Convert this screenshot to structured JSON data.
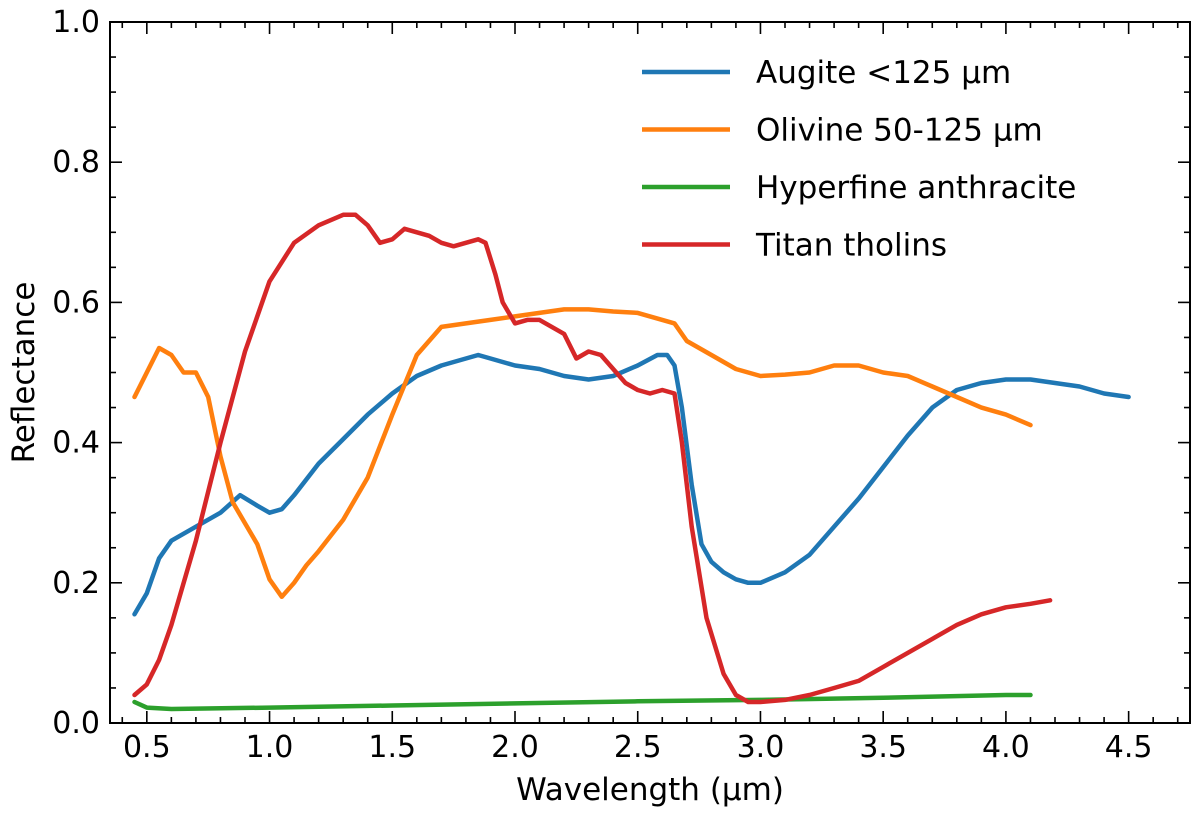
{
  "chart_data": {
    "type": "line",
    "xlabel": "Wavelength (µm)",
    "ylabel": "Reflectance",
    "xlim": [
      0.35,
      4.75
    ],
    "ylim": [
      0.0,
      1.0
    ],
    "xticks": [
      0.5,
      1.0,
      1.5,
      2.0,
      2.5,
      3.0,
      3.5,
      4.0,
      4.5
    ],
    "xtick_labels": [
      "0.5",
      "1.0",
      "1.5",
      "2.0",
      "2.5",
      "3.0",
      "3.5",
      "4.0",
      "4.5"
    ],
    "yticks": [
      0.0,
      0.2,
      0.4,
      0.6,
      0.8,
      1.0
    ],
    "ytick_labels": [
      "0.0",
      "0.2",
      "0.4",
      "0.6",
      "0.8",
      "1.0"
    ],
    "legend": {
      "position": "top-right"
    },
    "grid": false,
    "series": [
      {
        "name": "Augite <125 µm",
        "color": "#1f77b4",
        "x": [
          0.45,
          0.5,
          0.55,
          0.6,
          0.7,
          0.8,
          0.88,
          0.95,
          1.0,
          1.05,
          1.1,
          1.2,
          1.3,
          1.4,
          1.5,
          1.6,
          1.7,
          1.8,
          1.85,
          1.9,
          2.0,
          2.1,
          2.2,
          2.3,
          2.4,
          2.5,
          2.58,
          2.62,
          2.65,
          2.68,
          2.72,
          2.76,
          2.8,
          2.85,
          2.9,
          2.95,
          3.0,
          3.1,
          3.2,
          3.3,
          3.4,
          3.5,
          3.6,
          3.7,
          3.8,
          3.9,
          4.0,
          4.1,
          4.2,
          4.3,
          4.4,
          4.5
        ],
        "y": [
          0.155,
          0.185,
          0.235,
          0.26,
          0.28,
          0.3,
          0.325,
          0.31,
          0.3,
          0.305,
          0.325,
          0.37,
          0.405,
          0.44,
          0.47,
          0.495,
          0.51,
          0.52,
          0.525,
          0.52,
          0.51,
          0.505,
          0.495,
          0.49,
          0.495,
          0.51,
          0.525,
          0.525,
          0.51,
          0.45,
          0.34,
          0.255,
          0.23,
          0.215,
          0.205,
          0.2,
          0.2,
          0.215,
          0.24,
          0.28,
          0.32,
          0.365,
          0.41,
          0.45,
          0.475,
          0.485,
          0.49,
          0.49,
          0.485,
          0.48,
          0.47,
          0.465
        ]
      },
      {
        "name": "Olivine 50-125 µm",
        "color": "#ff7f0e",
        "x": [
          0.45,
          0.5,
          0.55,
          0.6,
          0.65,
          0.7,
          0.75,
          0.8,
          0.85,
          0.9,
          0.95,
          1.0,
          1.05,
          1.1,
          1.15,
          1.2,
          1.3,
          1.4,
          1.5,
          1.6,
          1.7,
          1.8,
          1.9,
          2.0,
          2.1,
          2.2,
          2.3,
          2.4,
          2.5,
          2.6,
          2.65,
          2.7,
          2.8,
          2.9,
          3.0,
          3.1,
          3.2,
          3.3,
          3.4,
          3.5,
          3.6,
          3.7,
          3.8,
          3.9,
          4.0,
          4.1
        ],
        "y": [
          0.465,
          0.5,
          0.535,
          0.525,
          0.5,
          0.5,
          0.465,
          0.38,
          0.315,
          0.285,
          0.255,
          0.205,
          0.18,
          0.2,
          0.225,
          0.245,
          0.29,
          0.35,
          0.44,
          0.525,
          0.565,
          0.57,
          0.575,
          0.58,
          0.585,
          0.59,
          0.59,
          0.587,
          0.585,
          0.575,
          0.57,
          0.545,
          0.525,
          0.505,
          0.495,
          0.497,
          0.5,
          0.51,
          0.51,
          0.5,
          0.495,
          0.48,
          0.465,
          0.45,
          0.44,
          0.425
        ]
      },
      {
        "name": "Hyperfine anthracite",
        "color": "#2ca02c",
        "x": [
          0.45,
          0.5,
          0.6,
          1.0,
          1.5,
          2.0,
          2.5,
          3.0,
          3.5,
          4.0,
          4.1
        ],
        "y": [
          0.03,
          0.022,
          0.02,
          0.022,
          0.025,
          0.028,
          0.031,
          0.033,
          0.036,
          0.04,
          0.04
        ]
      },
      {
        "name": "Titan tholins",
        "color": "#d62728",
        "x": [
          0.45,
          0.5,
          0.55,
          0.6,
          0.7,
          0.8,
          0.9,
          1.0,
          1.1,
          1.2,
          1.3,
          1.35,
          1.4,
          1.45,
          1.5,
          1.55,
          1.6,
          1.65,
          1.7,
          1.75,
          1.8,
          1.85,
          1.88,
          1.92,
          1.95,
          2.0,
          2.05,
          2.1,
          2.2,
          2.25,
          2.3,
          2.35,
          2.4,
          2.45,
          2.5,
          2.55,
          2.6,
          2.65,
          2.68,
          2.72,
          2.78,
          2.85,
          2.9,
          2.95,
          3.0,
          3.1,
          3.2,
          3.3,
          3.4,
          3.5,
          3.6,
          3.7,
          3.8,
          3.9,
          4.0,
          4.1,
          4.18
        ],
        "y": [
          0.04,
          0.055,
          0.09,
          0.14,
          0.26,
          0.4,
          0.53,
          0.63,
          0.685,
          0.71,
          0.725,
          0.725,
          0.71,
          0.685,
          0.69,
          0.705,
          0.7,
          0.695,
          0.685,
          0.68,
          0.685,
          0.69,
          0.685,
          0.64,
          0.6,
          0.57,
          0.575,
          0.575,
          0.555,
          0.52,
          0.53,
          0.525,
          0.505,
          0.485,
          0.475,
          0.47,
          0.475,
          0.47,
          0.4,
          0.28,
          0.15,
          0.07,
          0.04,
          0.03,
          0.03,
          0.033,
          0.04,
          0.05,
          0.06,
          0.08,
          0.1,
          0.12,
          0.14,
          0.155,
          0.165,
          0.17,
          0.175
        ]
      }
    ]
  }
}
